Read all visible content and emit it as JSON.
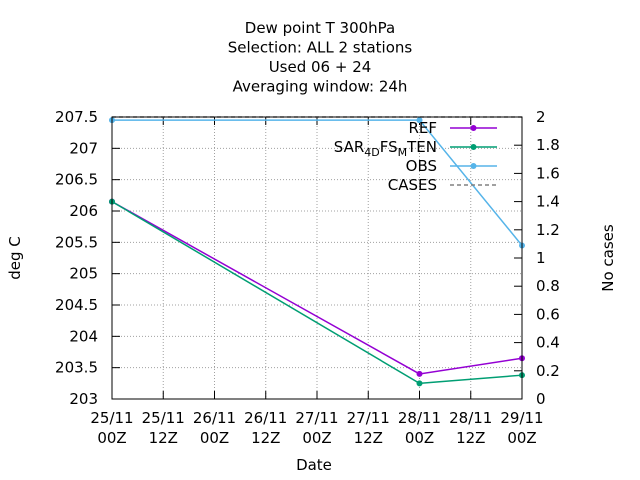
{
  "chart_data": {
    "type": "line",
    "title_lines": [
      "Dew point T 300hPa",
      "Selection: ALL       2 stations",
      "Used  06 + 24",
      "Averaging window: 24h"
    ],
    "xlabel": "Date",
    "ylabel": "deg C",
    "y2label": "No cases",
    "x_ticks": [
      {
        "line1": "25/11",
        "line2": "00Z"
      },
      {
        "line1": "25/11",
        "line2": "12Z"
      },
      {
        "line1": "26/11",
        "line2": "00Z"
      },
      {
        "line1": "26/11",
        "line2": "12Z"
      },
      {
        "line1": "27/11",
        "line2": "00Z"
      },
      {
        "line1": "27/11",
        "line2": "12Z"
      },
      {
        "line1": "28/11",
        "line2": "00Z"
      },
      {
        "line1": "28/11",
        "line2": "12Z"
      },
      {
        "line1": "29/11",
        "line2": "00Z"
      }
    ],
    "ylim": [
      203,
      207.5
    ],
    "y_ticks": [
      "203",
      "203.5",
      "204",
      "204.5",
      "205",
      "205.5",
      "206",
      "206.5",
      "207",
      "207.5"
    ],
    "y2lim": [
      0,
      2
    ],
    "y2_ticks": [
      "0",
      "0.2",
      "0.4",
      "0.6",
      "0.8",
      "1",
      "1.2",
      "1.4",
      "1.6",
      "1.8",
      "2"
    ],
    "grid": true,
    "legend_position": "top-right",
    "series": [
      {
        "name": "REF",
        "color": "#9400d3",
        "axis": "y",
        "marker": "filled-circle",
        "x": [
          "25/11 00Z",
          "28/11 00Z",
          "29/11 00Z"
        ],
        "values": [
          206.15,
          203.4,
          203.65
        ]
      },
      {
        "name_parts": [
          {
            "text": "SAR",
            "sub": false
          },
          {
            "text": "4",
            "sub": true
          },
          {
            "text": "D",
            "sub": true
          },
          {
            "text": "FS",
            "sub": false
          },
          {
            "text": "M",
            "sub": true
          },
          {
            "text": "TEN",
            "sub": false
          }
        ],
        "color": "#009e73",
        "axis": "y",
        "marker": "filled-circle",
        "x": [
          "25/11 00Z",
          "28/11 00Z",
          "29/11 00Z"
        ],
        "values": [
          206.15,
          203.25,
          203.38
        ]
      },
      {
        "name": "OBS",
        "color": "#56b4e9",
        "axis": "y",
        "marker": "filled-circle",
        "x": [
          "25/11 00Z",
          "28/11 00Z",
          "29/11 00Z"
        ],
        "values": [
          207.45,
          207.45,
          205.45
        ]
      },
      {
        "name": "CASES",
        "color": "#808080",
        "axis": "y2",
        "marker": "none",
        "dashed": true,
        "x": [
          "25/11 00Z",
          "28/11 00Z",
          "29/11 00Z"
        ],
        "values": [
          2,
          2,
          2
        ]
      }
    ]
  }
}
